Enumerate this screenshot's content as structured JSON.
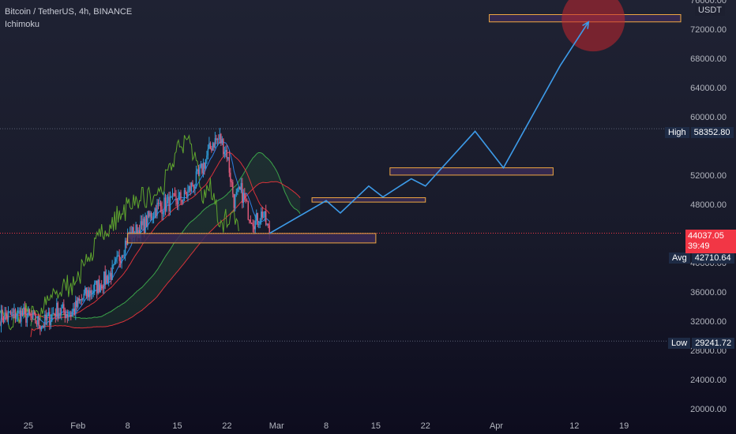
{
  "header": {
    "symbol": "Bitcoin / TetherUS, 4h, BINANCE",
    "indicator": "Ichimoku"
  },
  "currency_label": "USDT",
  "price_tags": {
    "high_label": "High",
    "high_value": "58352.80",
    "avg_label": "Avg",
    "avg_value": "42710.64",
    "low_label": "Low",
    "low_value": "29241.72",
    "last_price": "44037.05",
    "countdown": "39:49"
  },
  "colors": {
    "projection": "#3d9be9",
    "zone_fill": "#3a2a55",
    "zone_border": "#f0a742",
    "target_circle": "#c2262e",
    "last_price_bg": "#f23645",
    "price_line": "#f23645",
    "candle_up": "#2e9bd6",
    "candle_down": "#e05a7a",
    "tenkan": "#2e7fe0",
    "kijun": "#d8323a",
    "chikou": "#5fa52e",
    "span_a": "#3ba34a",
    "span_b": "#d8323a"
  },
  "chart_data": {
    "type": "line",
    "title": "Bitcoin / TetherUS, 4h, BINANCE",
    "y_axis": {
      "ticks": [
        20000,
        24000,
        28000,
        32000,
        36000,
        40000,
        44000,
        48000,
        52000,
        56000,
        60000,
        64000,
        68000,
        72000,
        76000
      ],
      "tick_labels": [
        "20000.00",
        "24000.00",
        "28000.00",
        "32000.00",
        "36000.00",
        "40000.00",
        "",
        "48000.00",
        "52000.00",
        "",
        "60000.00",
        "64000.00",
        "68000.00",
        "72000.00",
        "76000.00"
      ],
      "range": [
        19000,
        76000
      ]
    },
    "x_axis": {
      "tick_labels": [
        "25",
        "Feb",
        "8",
        "15",
        "22",
        "Mar",
        "8",
        "15",
        "22",
        "Apr",
        "12",
        "19"
      ],
      "tick_dates": [
        "2021-01-25",
        "2021-02-01",
        "2021-02-08",
        "2021-02-15",
        "2021-02-22",
        "2021-03-01",
        "2021-03-08",
        "2021-03-15",
        "2021-03-22",
        "2021-04-01",
        "2021-04-12",
        "2021-04-19"
      ],
      "range": [
        "2021-01-21",
        "2021-04-27"
      ]
    },
    "reference_lines": [
      {
        "name": "High",
        "value": 58352.8
      },
      {
        "name": "Low",
        "value": 29241.72
      },
      {
        "name": "Last",
        "value": 44037.05
      }
    ],
    "price_path": [
      [
        "2021-01-21",
        32500
      ],
      [
        "2021-01-24",
        33000
      ],
      [
        "2021-01-27",
        31500
      ],
      [
        "2021-01-29",
        33500
      ],
      [
        "2021-01-31",
        33000
      ],
      [
        "2021-02-02",
        35500
      ],
      [
        "2021-02-04",
        37000
      ],
      [
        "2021-02-06",
        38800
      ],
      [
        "2021-02-08",
        43500
      ],
      [
        "2021-02-10",
        44800
      ],
      [
        "2021-02-12",
        47500
      ],
      [
        "2021-02-14",
        48200
      ],
      [
        "2021-02-16",
        49000
      ],
      [
        "2021-02-18",
        51800
      ],
      [
        "2021-02-20",
        56500
      ],
      [
        "2021-02-21",
        57000
      ],
      [
        "2021-02-22",
        55000
      ],
      [
        "2021-02-23",
        48500
      ],
      [
        "2021-02-24",
        49800
      ],
      [
        "2021-02-25",
        47000
      ],
      [
        "2021-02-26",
        45500
      ],
      [
        "2021-02-27",
        46800
      ],
      [
        "2021-02-28",
        44000
      ]
    ],
    "projection_path": [
      [
        "2021-02-28",
        44000
      ],
      [
        "2021-03-08",
        48500
      ],
      [
        "2021-03-10",
        46800
      ],
      [
        "2021-03-14",
        50500
      ],
      [
        "2021-03-16",
        49000
      ],
      [
        "2021-03-20",
        51500
      ],
      [
        "2021-03-22",
        50500
      ],
      [
        "2021-03-29",
        58000
      ],
      [
        "2021-04-02",
        53000
      ],
      [
        "2021-04-10",
        67000
      ],
      [
        "2021-04-14",
        73000
      ]
    ],
    "zones": [
      {
        "start": "2021-02-08",
        "end": "2021-03-15",
        "low": 42700,
        "high": 44000
      },
      {
        "start": "2021-03-06",
        "end": "2021-03-22",
        "low": 48300,
        "high": 48900
      },
      {
        "start": "2021-03-17",
        "end": "2021-04-09",
        "low": 52000,
        "high": 53000
      },
      {
        "start": "2021-03-31",
        "end": "2021-04-27",
        "low": 73000,
        "high": 74000
      }
    ],
    "target": {
      "date": "2021-04-14",
      "value": 73500
    }
  }
}
